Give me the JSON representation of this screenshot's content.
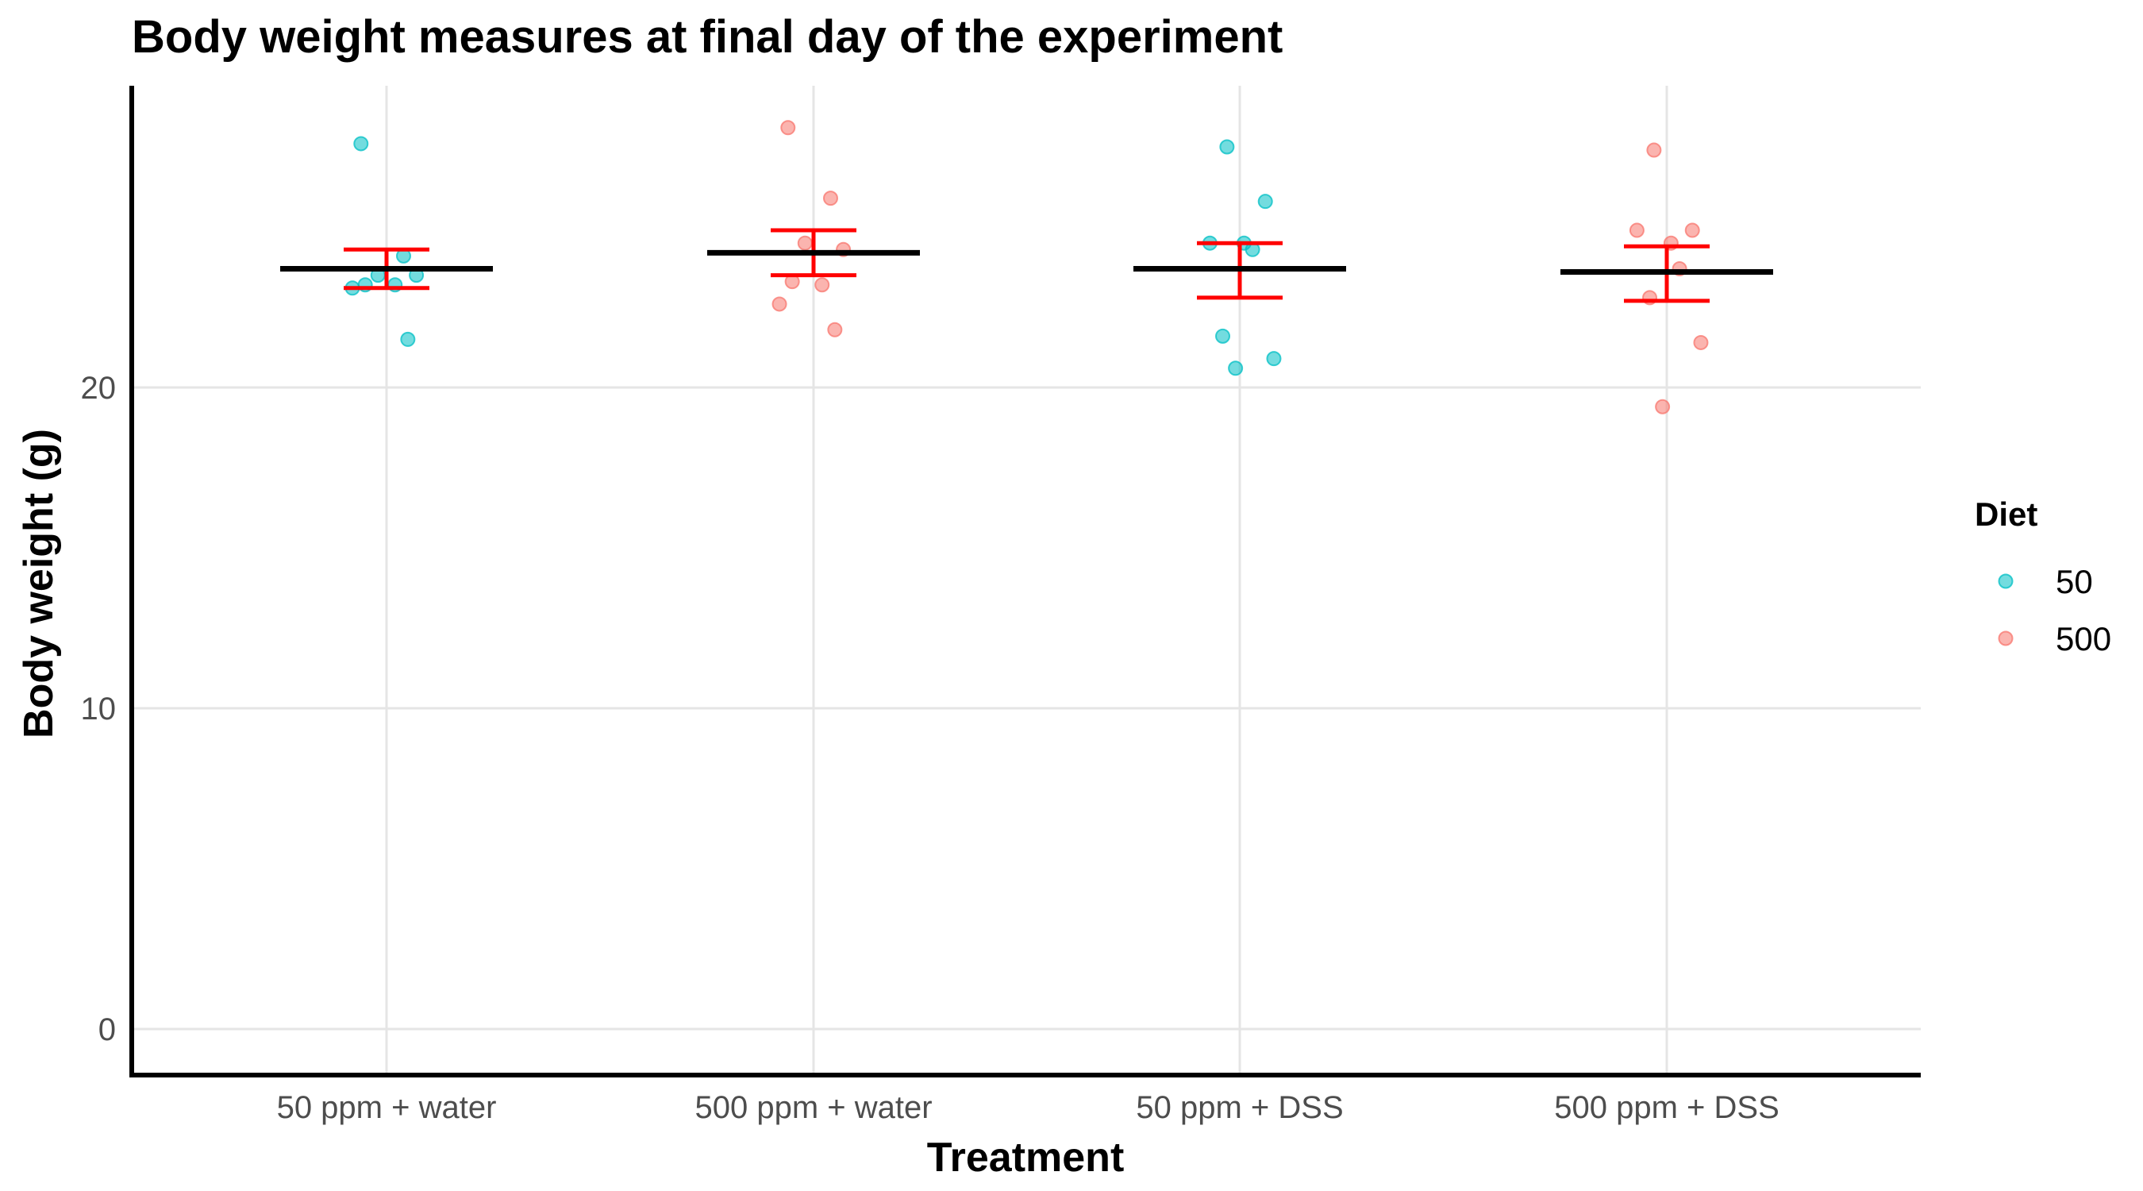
{
  "chart_data": {
    "type": "scatter",
    "title": "Body weight measures at final day of the experiment",
    "xlabel": "Treatment",
    "ylabel": "Body weight (g)",
    "categories": [
      "50 ppm + water",
      "500 ppm + water",
      "50 ppm + DSS",
      "500 ppm + DSS"
    ],
    "y_ticks": [
      "0",
      "10",
      "20"
    ],
    "y_tick_values": [
      0,
      10,
      20
    ],
    "ylim": [
      -1.4,
      29.4
    ],
    "grid": true,
    "legend": {
      "title": "Diet",
      "position": "right",
      "entries": [
        {
          "label": "50",
          "color": "#00BFC4"
        },
        {
          "label": "500",
          "color": "#F8766D"
        }
      ]
    },
    "series": [
      {
        "name": "50",
        "color": "#00BFC4",
        "points": [
          {
            "x": "50 ppm + water",
            "y": 27.6
          },
          {
            "x": "50 ppm + water",
            "y": 24.1
          },
          {
            "x": "50 ppm + water",
            "y": 23.5
          },
          {
            "x": "50 ppm + water",
            "y": 23.5
          },
          {
            "x": "50 ppm + water",
            "y": 23.2
          },
          {
            "x": "50 ppm + water",
            "y": 23.2
          },
          {
            "x": "50 ppm + water",
            "y": 23.1
          },
          {
            "x": "50 ppm + water",
            "y": 21.5
          },
          {
            "x": "50 ppm + DSS",
            "y": 27.5
          },
          {
            "x": "50 ppm + DSS",
            "y": 25.8
          },
          {
            "x": "50 ppm + DSS",
            "y": 24.5
          },
          {
            "x": "50 ppm + DSS",
            "y": 24.5
          },
          {
            "x": "50 ppm + DSS",
            "y": 24.3
          },
          {
            "x": "50 ppm + DSS",
            "y": 21.6
          },
          {
            "x": "50 ppm + DSS",
            "y": 20.9
          },
          {
            "x": "50 ppm + DSS",
            "y": 20.6
          }
        ]
      },
      {
        "name": "500",
        "color": "#F8766D",
        "points": [
          {
            "x": "500 ppm + water",
            "y": 28.1
          },
          {
            "x": "500 ppm + water",
            "y": 25.9
          },
          {
            "x": "500 ppm + water",
            "y": 24.5
          },
          {
            "x": "500 ppm + water",
            "y": 24.3
          },
          {
            "x": "500 ppm + water",
            "y": 23.3
          },
          {
            "x": "500 ppm + water",
            "y": 23.2
          },
          {
            "x": "500 ppm + water",
            "y": 22.6
          },
          {
            "x": "500 ppm + water",
            "y": 21.8
          },
          {
            "x": "500 ppm + DSS",
            "y": 27.4
          },
          {
            "x": "500 ppm + DSS",
            "y": 24.9
          },
          {
            "x": "500 ppm + DSS",
            "y": 24.9
          },
          {
            "x": "500 ppm + DSS",
            "y": 24.5
          },
          {
            "x": "500 ppm + DSS",
            "y": 23.7
          },
          {
            "x": "500 ppm + DSS",
            "y": 22.8
          },
          {
            "x": "500 ppm + DSS",
            "y": 21.4
          },
          {
            "x": "500 ppm + DSS",
            "y": 19.4
          }
        ]
      }
    ],
    "summary": {
      "mean_color": "#000000",
      "error_color": "#FF0000",
      "groups": [
        {
          "category": "50 ppm + water",
          "mean": 23.7,
          "upper": 24.3,
          "lower": 23.1
        },
        {
          "category": "500 ppm + water",
          "mean": 24.2,
          "upper": 24.9,
          "lower": 23.5
        },
        {
          "category": "50 ppm + DSS",
          "mean": 23.7,
          "upper": 24.5,
          "lower": 22.8
        },
        {
          "category": "500 ppm + DSS",
          "mean": 23.6,
          "upper": 24.4,
          "lower": 22.7
        }
      ]
    }
  }
}
